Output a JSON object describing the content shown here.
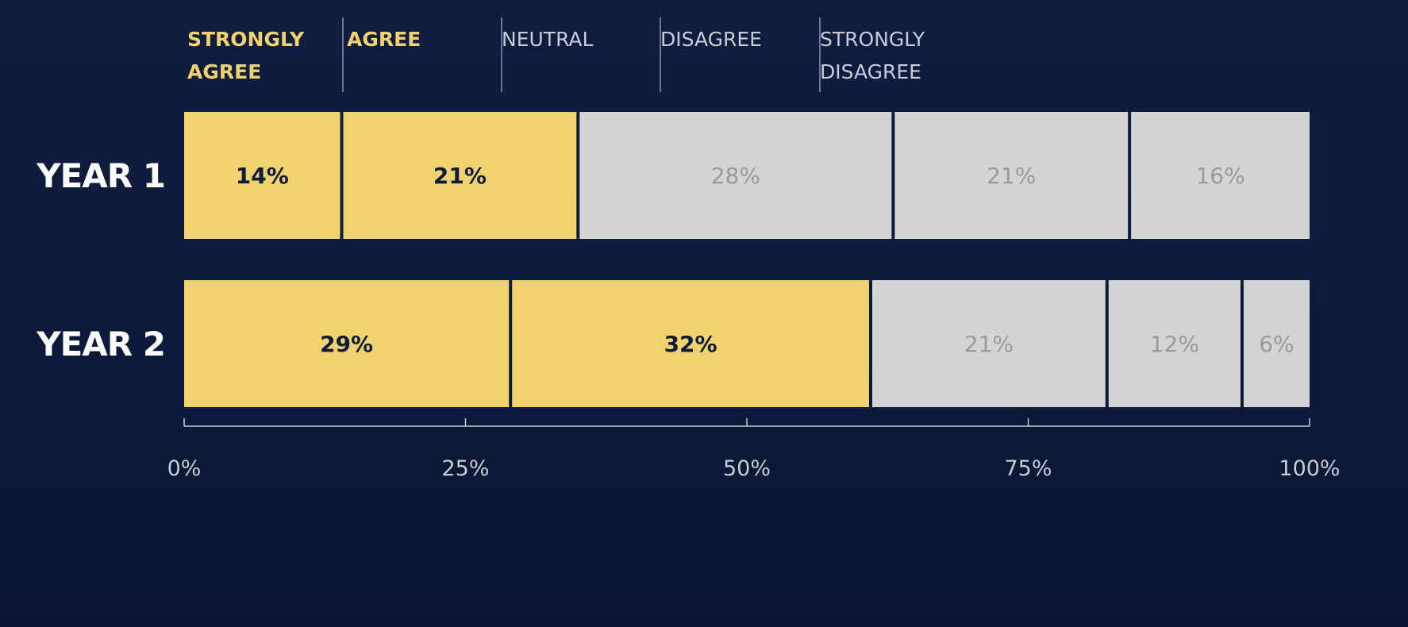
{
  "colors": {
    "background": "#0d1b3d",
    "agree": "#f0d36e",
    "neutral": "#d4d4d4",
    "agree_text": "#0d1b3d",
    "neutral_text": "#9a9a9a",
    "legend_agree": "#f0d36e",
    "legend_neutral": "#c9ccd4",
    "axis": "#c9ccd4",
    "row_label": "#ffffff"
  },
  "chart_data": {
    "type": "bar",
    "orientation": "horizontal",
    "stacked": true,
    "normalized": true,
    "categories": [
      "YEAR 1",
      "YEAR 2"
    ],
    "series": [
      {
        "name": "STRONGLY AGREE",
        "values": [
          14,
          29
        ],
        "highlight": true
      },
      {
        "name": "AGREE",
        "values": [
          21,
          32
        ],
        "highlight": true
      },
      {
        "name": "NEUTRAL",
        "values": [
          28,
          21
        ],
        "highlight": false
      },
      {
        "name": "DISAGREE",
        "values": [
          21,
          12
        ],
        "highlight": false
      },
      {
        "name": "STRONGLY DISAGREE",
        "values": [
          16,
          6
        ],
        "highlight": false
      }
    ],
    "data_labels": [
      [
        "14%",
        "21%",
        "28%",
        "21%",
        "16%"
      ],
      [
        "29%",
        "32%",
        "21%",
        "12%",
        "6%"
      ]
    ],
    "legend_lines": [
      [
        "STRONGLY",
        "AGREE"
      ],
      [
        "AGREE"
      ],
      [
        "NEUTRAL"
      ],
      [
        "DISAGREE"
      ],
      [
        "STRONGLY",
        "DISAGREE"
      ]
    ],
    "x_ticks": [
      0,
      25,
      50,
      75,
      100
    ],
    "x_tick_labels": [
      "0%",
      "25%",
      "50%",
      "75%",
      "100%"
    ],
    "xlim": [
      0,
      100
    ],
    "legend_position": "top",
    "grid": false
  }
}
